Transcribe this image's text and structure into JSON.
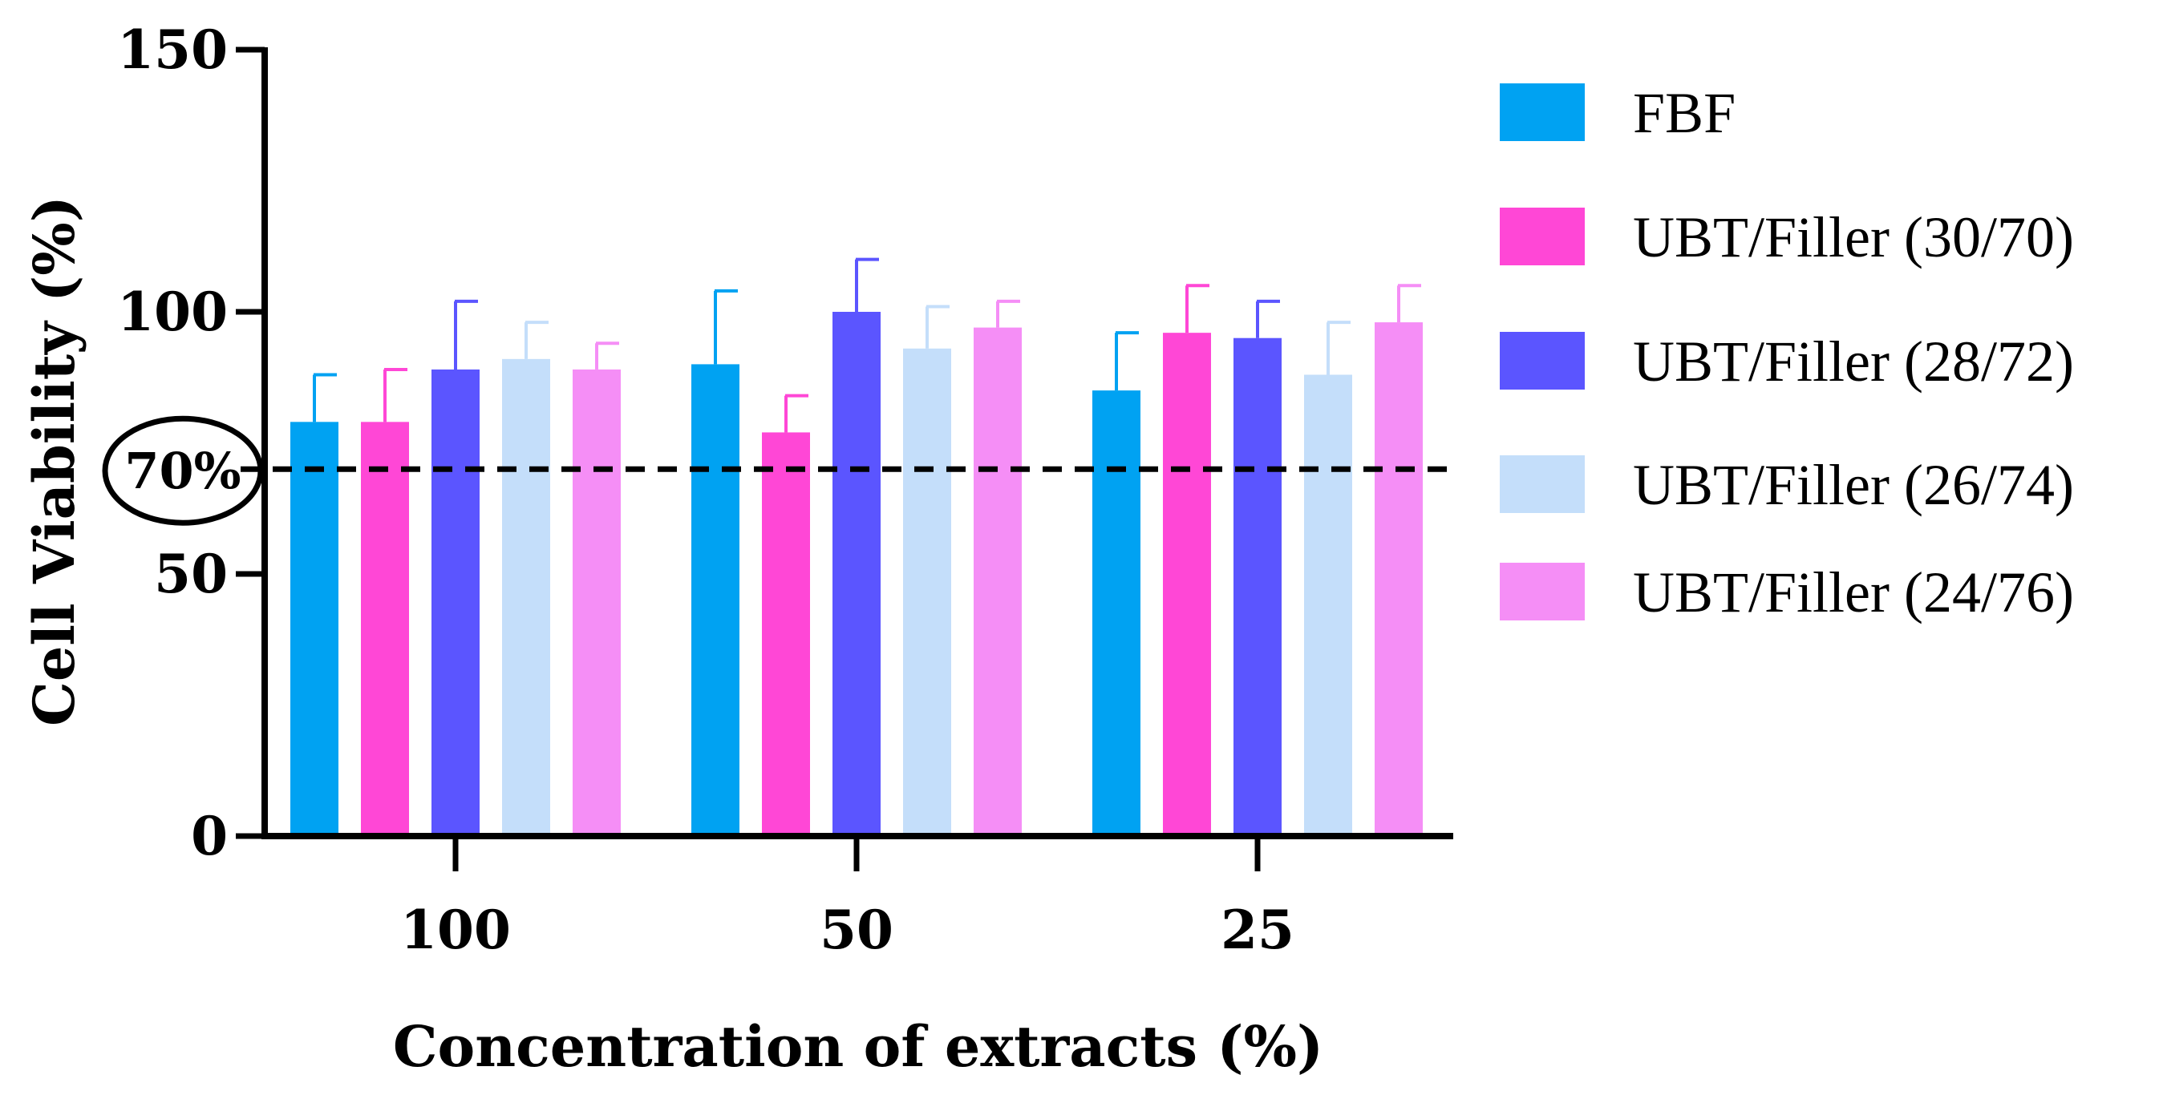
{
  "chart_data": {
    "type": "bar",
    "xlabel": "Concentration of extracts (%)",
    "ylabel": "Cell Viability (%)",
    "ylim": [
      0,
      150
    ],
    "yticks": [
      0,
      50,
      100,
      150
    ],
    "categories": [
      "100",
      "50",
      "25"
    ],
    "series": [
      {
        "name": "FBF",
        "color": "#00A2F2",
        "values": [
          79,
          90,
          85
        ],
        "errors": [
          9,
          14,
          11
        ]
      },
      {
        "name": "UBT/Filler (30/70)",
        "color": "#FF47D6",
        "values": [
          79,
          77,
          96
        ],
        "errors": [
          10,
          7,
          9
        ]
      },
      {
        "name": "UBT/Filler (28/72)",
        "color": "#5B55FF",
        "values": [
          89,
          100,
          95
        ],
        "errors": [
          13,
          10,
          7
        ]
      },
      {
        "name": "UBT/Filler (26/74)",
        "color": "#C4DEFA",
        "values": [
          91,
          93,
          88
        ],
        "errors": [
          7,
          8,
          10
        ]
      },
      {
        "name": "UBT/Filler (24/76)",
        "color": "#F58EF6",
        "values": [
          89,
          97,
          98
        ],
        "errors": [
          5,
          5,
          7
        ]
      }
    ],
    "threshold": {
      "value": 70,
      "label": "70%",
      "style": "dashed"
    },
    "legend": "right"
  }
}
